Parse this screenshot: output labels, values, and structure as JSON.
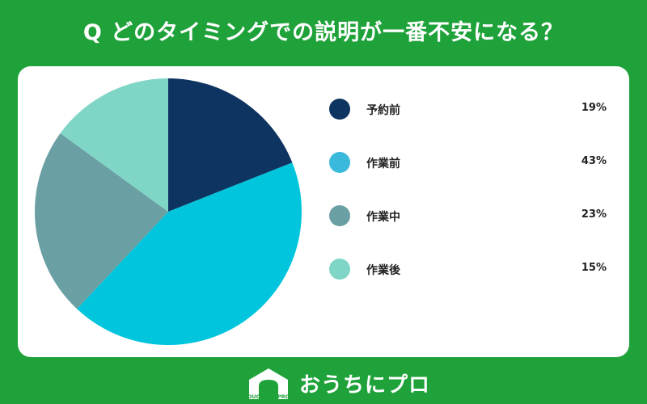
{
  "title": "Q どのタイミングでの説明が一番不安になる？",
  "chart_data": {
    "type": "pie",
    "categories": [
      "予約前",
      "作業前",
      "作業中",
      "作業後"
    ],
    "values": [
      19,
      43,
      23,
      15
    ],
    "value_labels": [
      "19%",
      "43%",
      "23%",
      "15%"
    ],
    "colors": [
      "#0e3461",
      "#00c5dc",
      "#6a9fa3",
      "#7fd6c6"
    ],
    "legend_colors": [
      "#0e3461",
      "#3bb9dc",
      "#6a9fa3",
      "#7fd6c6"
    ],
    "start_angle": "12 o'clock, clockwise",
    "legend_position": "right"
  },
  "footer": {
    "logo_text": "OUCHI no PRO",
    "brand": "おうちにプロ"
  }
}
